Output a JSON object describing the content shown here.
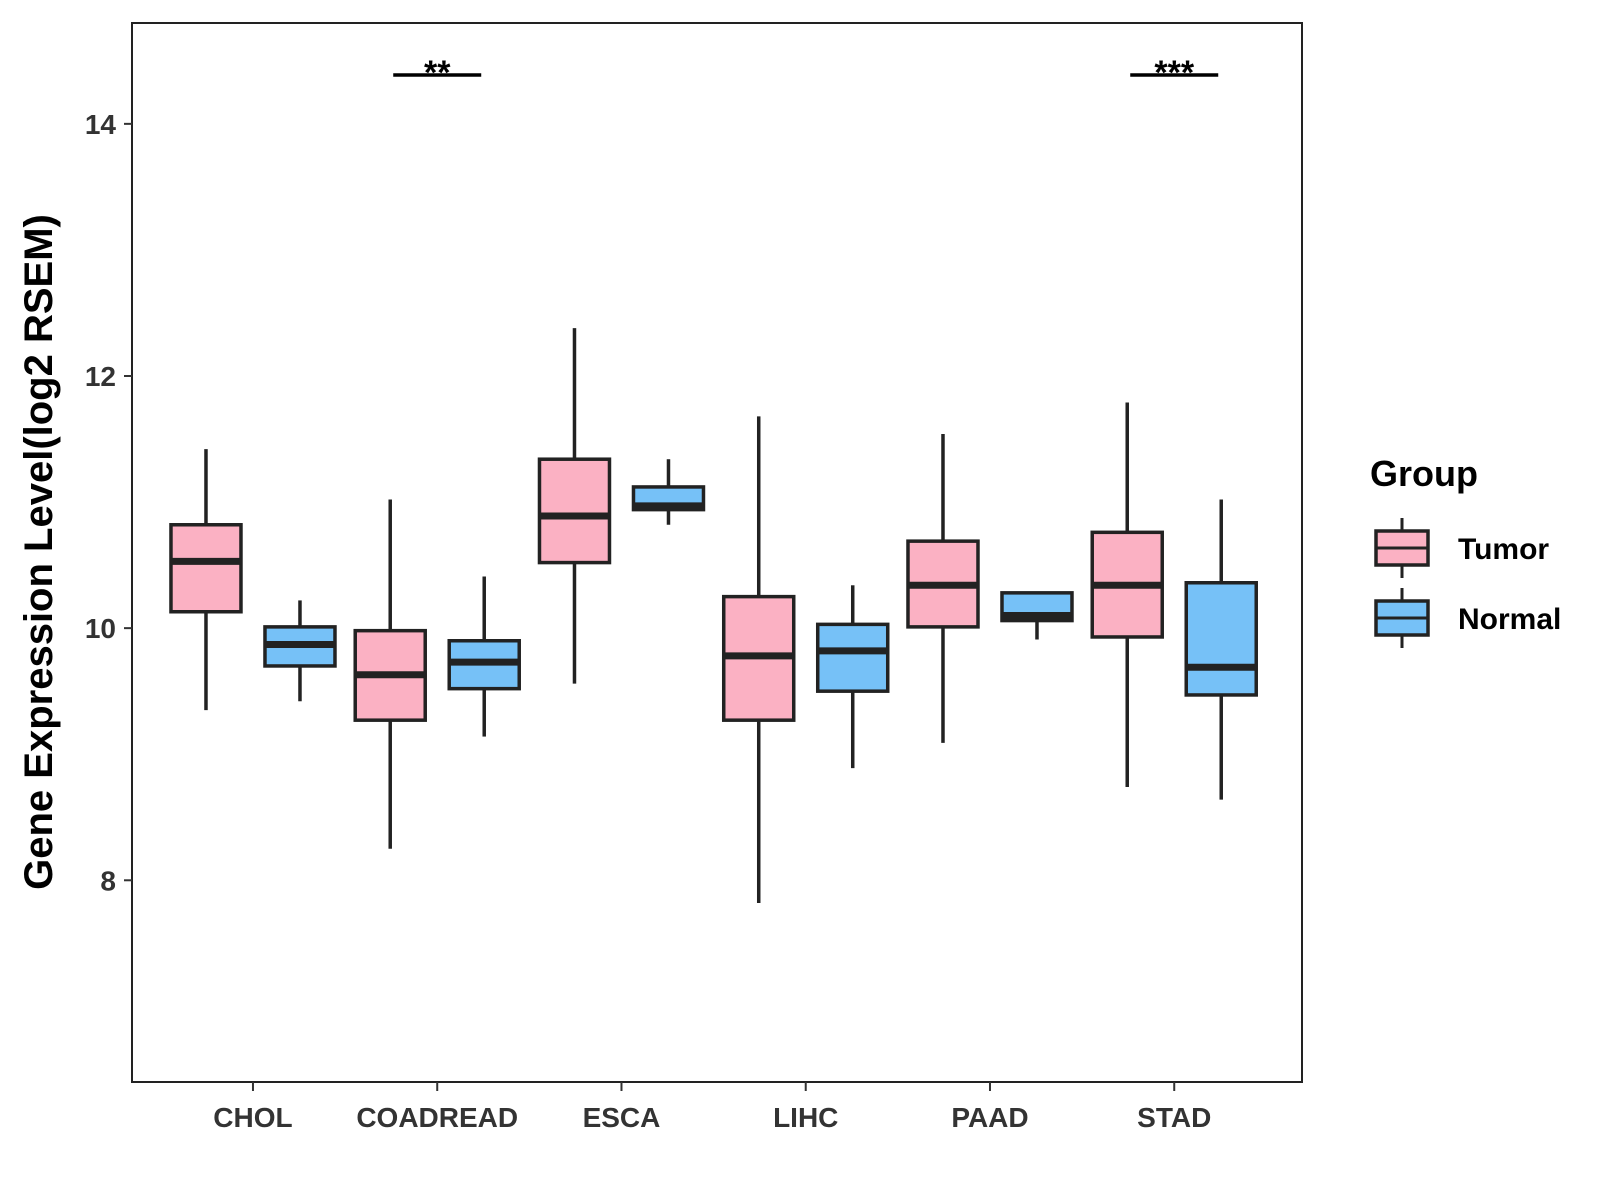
{
  "chart_data": {
    "type": "boxplot",
    "ylabel": "Gene Expression Level(log2 RSEM)",
    "xlabel": "",
    "ylim": [
      6.4,
      14.8
    ],
    "yticks": [
      8,
      10,
      12,
      14
    ],
    "categories": [
      "CHOL",
      "COADREAD",
      "ESCA",
      "LIHC",
      "PAAD",
      "STAD"
    ],
    "legend": {
      "title": "Group",
      "position": "right",
      "entries": [
        {
          "name": "Tumor",
          "color": "#fbb1c3"
        },
        {
          "name": "Normal",
          "color": "#76c1f7"
        }
      ]
    },
    "series": [
      {
        "name": "Tumor",
        "color": "#fbb1c3",
        "boxes": [
          {
            "category": "CHOL",
            "min": 9.35,
            "q1": 10.13,
            "median": 10.53,
            "q3": 10.82,
            "max": 11.42
          },
          {
            "category": "COADREAD",
            "min": 8.25,
            "q1": 9.27,
            "median": 9.63,
            "q3": 9.98,
            "max": 11.02
          },
          {
            "category": "ESCA",
            "min": 9.56,
            "q1": 10.52,
            "median": 10.89,
            "q3": 11.34,
            "max": 12.38
          },
          {
            "category": "LIHC",
            "min": 7.82,
            "q1": 9.27,
            "median": 9.78,
            "q3": 10.25,
            "max": 11.68
          },
          {
            "category": "PAAD",
            "min": 9.09,
            "q1": 10.01,
            "median": 10.34,
            "q3": 10.69,
            "max": 11.54
          },
          {
            "category": "STAD",
            "min": 8.74,
            "q1": 9.93,
            "median": 10.34,
            "q3": 10.76,
            "max": 11.79
          }
        ]
      },
      {
        "name": "Normal",
        "color": "#76c1f7",
        "boxes": [
          {
            "category": "CHOL",
            "min": 9.42,
            "q1": 9.7,
            "median": 9.87,
            "q3": 10.01,
            "max": 10.22
          },
          {
            "category": "COADREAD",
            "min": 9.14,
            "q1": 9.52,
            "median": 9.73,
            "q3": 9.9,
            "max": 10.41
          },
          {
            "category": "ESCA",
            "min": 10.82,
            "q1": 10.94,
            "median": 10.97,
            "q3": 11.12,
            "max": 11.34
          },
          {
            "category": "LIHC",
            "min": 8.89,
            "q1": 9.5,
            "median": 9.82,
            "q3": 10.03,
            "max": 10.34
          },
          {
            "category": "PAAD",
            "min": 9.91,
            "q1": 10.06,
            "median": 10.1,
            "q3": 10.28,
            "max": 10.28
          },
          {
            "category": "STAD",
            "min": 8.64,
            "q1": 9.47,
            "median": 9.69,
            "q3": 10.36,
            "max": 11.02
          }
        ]
      }
    ],
    "significance": [
      {
        "category": "COADREAD",
        "label": "**"
      },
      {
        "category": "STAD",
        "label": "***"
      }
    ]
  }
}
